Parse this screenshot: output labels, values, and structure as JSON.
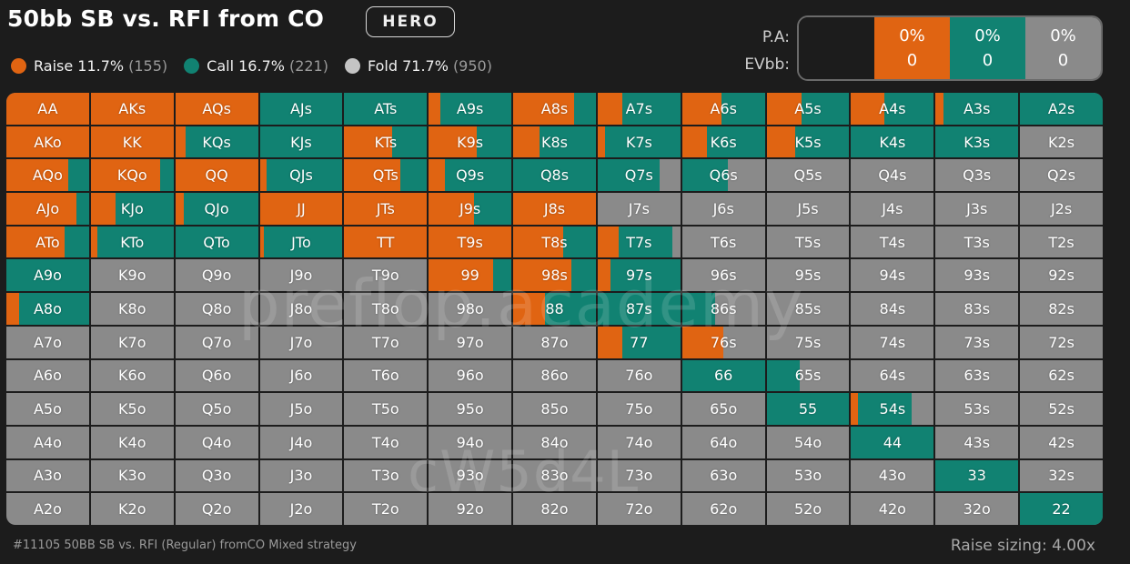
{
  "header": {
    "title": "50bb SB vs. RFI from CO",
    "hero_label": "HERO"
  },
  "legend": [
    {
      "name": "Raise",
      "pct": "11.7%",
      "count": "(155)",
      "color": "#e06412"
    },
    {
      "name": "Call",
      "pct": "16.7%",
      "count": "(221)",
      "color": "#118272"
    },
    {
      "name": "Fold",
      "pct": "71.7%",
      "count": "(950)",
      "color": "#c4c4c4"
    }
  ],
  "pa_panel": {
    "labels": [
      "P.A:",
      "EVbb:"
    ],
    "cells": [
      {
        "pa": "0%",
        "ev": "0",
        "color": "#e06412"
      },
      {
        "pa": "0%",
        "ev": "0",
        "color": "#118272"
      },
      {
        "pa": "0%",
        "ev": "0",
        "color": "#8a8a8a"
      }
    ]
  },
  "colors": {
    "raise": "#e06412",
    "call": "#118272",
    "fold": "#8a8a8a",
    "background": "#1c1c1c"
  },
  "grid": [
    [
      {
        "label": "AA",
        "raise": 100,
        "call": 0
      },
      {
        "label": "AKs",
        "raise": 100,
        "call": 0
      },
      {
        "label": "AQs",
        "raise": 100,
        "call": 0
      },
      {
        "label": "AJs",
        "raise": 0,
        "call": 100
      },
      {
        "label": "ATs",
        "raise": 0,
        "call": 100
      },
      {
        "label": "A9s",
        "raise": 14,
        "call": 86
      },
      {
        "label": "A8s",
        "raise": 74,
        "call": 26
      },
      {
        "label": "A7s",
        "raise": 30,
        "call": 70
      },
      {
        "label": "A6s",
        "raise": 48,
        "call": 52
      },
      {
        "label": "A5s",
        "raise": 42,
        "call": 58
      },
      {
        "label": "A4s",
        "raise": 40,
        "call": 60
      },
      {
        "label": "A3s",
        "raise": 10,
        "call": 90
      },
      {
        "label": "A2s",
        "raise": 0,
        "call": 100
      }
    ],
    [
      {
        "label": "AKo",
        "raise": 100,
        "call": 0
      },
      {
        "label": "KK",
        "raise": 100,
        "call": 0
      },
      {
        "label": "KQs",
        "raise": 12,
        "call": 88
      },
      {
        "label": "KJs",
        "raise": 0,
        "call": 100
      },
      {
        "label": "KTs",
        "raise": 58,
        "call": 42
      },
      {
        "label": "K9s",
        "raise": 58,
        "call": 42
      },
      {
        "label": "K8s",
        "raise": 32,
        "call": 68
      },
      {
        "label": "K7s",
        "raise": 9,
        "call": 91
      },
      {
        "label": "K6s",
        "raise": 30,
        "call": 70
      },
      {
        "label": "K5s",
        "raise": 35,
        "call": 65
      },
      {
        "label": "K4s",
        "raise": 0,
        "call": 100
      },
      {
        "label": "K3s",
        "raise": 0,
        "call": 100
      },
      {
        "label": "K2s",
        "raise": 0,
        "call": 0
      }
    ],
    [
      {
        "label": "AQo",
        "raise": 75,
        "call": 25
      },
      {
        "label": "KQo",
        "raise": 84,
        "call": 16
      },
      {
        "label": "QQ",
        "raise": 100,
        "call": 0
      },
      {
        "label": "QJs",
        "raise": 8,
        "call": 92
      },
      {
        "label": "QTs",
        "raise": 68,
        "call": 32
      },
      {
        "label": "Q9s",
        "raise": 20,
        "call": 80
      },
      {
        "label": "Q8s",
        "raise": 0,
        "call": 100
      },
      {
        "label": "Q7s",
        "raise": 0,
        "call": 75
      },
      {
        "label": "Q6s",
        "raise": 0,
        "call": 55
      },
      {
        "label": "Q5s",
        "raise": 0,
        "call": 0
      },
      {
        "label": "Q4s",
        "raise": 0,
        "call": 0
      },
      {
        "label": "Q3s",
        "raise": 0,
        "call": 0
      },
      {
        "label": "Q2s",
        "raise": 0,
        "call": 0
      }
    ],
    [
      {
        "label": "AJo",
        "raise": 85,
        "call": 15
      },
      {
        "label": "KJo",
        "raise": 30,
        "call": 70
      },
      {
        "label": "QJo",
        "raise": 10,
        "call": 90
      },
      {
        "label": "JJ",
        "raise": 100,
        "call": 0
      },
      {
        "label": "JTs",
        "raise": 100,
        "call": 0
      },
      {
        "label": "J9s",
        "raise": 55,
        "call": 45
      },
      {
        "label": "J8s",
        "raise": 100,
        "call": 0
      },
      {
        "label": "J7s",
        "raise": 0,
        "call": 0
      },
      {
        "label": "J6s",
        "raise": 0,
        "call": 0
      },
      {
        "label": "J5s",
        "raise": 0,
        "call": 0
      },
      {
        "label": "J4s",
        "raise": 0,
        "call": 0
      },
      {
        "label": "J3s",
        "raise": 0,
        "call": 0
      },
      {
        "label": "J2s",
        "raise": 0,
        "call": 0
      }
    ],
    [
      {
        "label": "ATo",
        "raise": 70,
        "call": 30
      },
      {
        "label": "KTo",
        "raise": 8,
        "call": 92
      },
      {
        "label": "QTo",
        "raise": 0,
        "call": 100
      },
      {
        "label": "JTo",
        "raise": 5,
        "call": 95
      },
      {
        "label": "TT",
        "raise": 100,
        "call": 0
      },
      {
        "label": "T9s",
        "raise": 100,
        "call": 0
      },
      {
        "label": "T8s",
        "raise": 60,
        "call": 40
      },
      {
        "label": "T7s",
        "raise": 25,
        "call": 65
      },
      {
        "label": "T6s",
        "raise": 0,
        "call": 0
      },
      {
        "label": "T5s",
        "raise": 0,
        "call": 0
      },
      {
        "label": "T4s",
        "raise": 0,
        "call": 0
      },
      {
        "label": "T3s",
        "raise": 0,
        "call": 0
      },
      {
        "label": "T2s",
        "raise": 0,
        "call": 0
      }
    ],
    [
      {
        "label": "A9o",
        "raise": 0,
        "call": 100
      },
      {
        "label": "K9o",
        "raise": 0,
        "call": 0
      },
      {
        "label": "Q9o",
        "raise": 0,
        "call": 0
      },
      {
        "label": "J9o",
        "raise": 0,
        "call": 0
      },
      {
        "label": "T9o",
        "raise": 0,
        "call": 0
      },
      {
        "label": "99",
        "raise": 78,
        "call": 22
      },
      {
        "label": "98s",
        "raise": 70,
        "call": 30
      },
      {
        "label": "97s",
        "raise": 15,
        "call": 85
      },
      {
        "label": "96s",
        "raise": 0,
        "call": 0
      },
      {
        "label": "95s",
        "raise": 0,
        "call": 0
      },
      {
        "label": "94s",
        "raise": 0,
        "call": 0
      },
      {
        "label": "93s",
        "raise": 0,
        "call": 0
      },
      {
        "label": "92s",
        "raise": 0,
        "call": 0
      }
    ],
    [
      {
        "label": "A8o",
        "raise": 15,
        "call": 85
      },
      {
        "label": "K8o",
        "raise": 0,
        "call": 0
      },
      {
        "label": "Q8o",
        "raise": 0,
        "call": 0
      },
      {
        "label": "J8o",
        "raise": 0,
        "call": 0
      },
      {
        "label": "T8o",
        "raise": 0,
        "call": 0
      },
      {
        "label": "98o",
        "raise": 0,
        "call": 0
      },
      {
        "label": "88",
        "raise": 38,
        "call": 62
      },
      {
        "label": "87s",
        "raise": 0,
        "call": 100
      },
      {
        "label": "86s",
        "raise": 0,
        "call": 40
      },
      {
        "label": "85s",
        "raise": 0,
        "call": 0
      },
      {
        "label": "84s",
        "raise": 0,
        "call": 0
      },
      {
        "label": "83s",
        "raise": 0,
        "call": 0
      },
      {
        "label": "82s",
        "raise": 0,
        "call": 0
      }
    ],
    [
      {
        "label": "A7o",
        "raise": 0,
        "call": 0
      },
      {
        "label": "K7o",
        "raise": 0,
        "call": 0
      },
      {
        "label": "Q7o",
        "raise": 0,
        "call": 0
      },
      {
        "label": "J7o",
        "raise": 0,
        "call": 0
      },
      {
        "label": "T7o",
        "raise": 0,
        "call": 0
      },
      {
        "label": "97o",
        "raise": 0,
        "call": 0
      },
      {
        "label": "87o",
        "raise": 0,
        "call": 0
      },
      {
        "label": "77",
        "raise": 30,
        "call": 70
      },
      {
        "label": "76s",
        "raise": 50,
        "call": 0
      },
      {
        "label": "75s",
        "raise": 0,
        "call": 0
      },
      {
        "label": "74s",
        "raise": 0,
        "call": 0
      },
      {
        "label": "73s",
        "raise": 0,
        "call": 0
      },
      {
        "label": "72s",
        "raise": 0,
        "call": 0
      }
    ],
    [
      {
        "label": "A6o",
        "raise": 0,
        "call": 0
      },
      {
        "label": "K6o",
        "raise": 0,
        "call": 0
      },
      {
        "label": "Q6o",
        "raise": 0,
        "call": 0
      },
      {
        "label": "J6o",
        "raise": 0,
        "call": 0
      },
      {
        "label": "T6o",
        "raise": 0,
        "call": 0
      },
      {
        "label": "96o",
        "raise": 0,
        "call": 0
      },
      {
        "label": "86o",
        "raise": 0,
        "call": 0
      },
      {
        "label": "76o",
        "raise": 0,
        "call": 0
      },
      {
        "label": "66",
        "raise": 0,
        "call": 100
      },
      {
        "label": "65s",
        "raise": 0,
        "call": 40
      },
      {
        "label": "64s",
        "raise": 0,
        "call": 0
      },
      {
        "label": "63s",
        "raise": 0,
        "call": 0
      },
      {
        "label": "62s",
        "raise": 0,
        "call": 0
      }
    ],
    [
      {
        "label": "A5o",
        "raise": 0,
        "call": 0
      },
      {
        "label": "K5o",
        "raise": 0,
        "call": 0
      },
      {
        "label": "Q5o",
        "raise": 0,
        "call": 0
      },
      {
        "label": "J5o",
        "raise": 0,
        "call": 0
      },
      {
        "label": "T5o",
        "raise": 0,
        "call": 0
      },
      {
        "label": "95o",
        "raise": 0,
        "call": 0
      },
      {
        "label": "85o",
        "raise": 0,
        "call": 0
      },
      {
        "label": "75o",
        "raise": 0,
        "call": 0
      },
      {
        "label": "65o",
        "raise": 0,
        "call": 0
      },
      {
        "label": "55",
        "raise": 0,
        "call": 100
      },
      {
        "label": "54s",
        "raise": 8,
        "call": 65
      },
      {
        "label": "53s",
        "raise": 0,
        "call": 0
      },
      {
        "label": "52s",
        "raise": 0,
        "call": 0
      }
    ],
    [
      {
        "label": "A4o",
        "raise": 0,
        "call": 0
      },
      {
        "label": "K4o",
        "raise": 0,
        "call": 0
      },
      {
        "label": "Q4o",
        "raise": 0,
        "call": 0
      },
      {
        "label": "J4o",
        "raise": 0,
        "call": 0
      },
      {
        "label": "T4o",
        "raise": 0,
        "call": 0
      },
      {
        "label": "94o",
        "raise": 0,
        "call": 0
      },
      {
        "label": "84o",
        "raise": 0,
        "call": 0
      },
      {
        "label": "74o",
        "raise": 0,
        "call": 0
      },
      {
        "label": "64o",
        "raise": 0,
        "call": 0
      },
      {
        "label": "54o",
        "raise": 0,
        "call": 0
      },
      {
        "label": "44",
        "raise": 0,
        "call": 100
      },
      {
        "label": "43s",
        "raise": 0,
        "call": 0
      },
      {
        "label": "42s",
        "raise": 0,
        "call": 0
      }
    ],
    [
      {
        "label": "A3o",
        "raise": 0,
        "call": 0
      },
      {
        "label": "K3o",
        "raise": 0,
        "call": 0
      },
      {
        "label": "Q3o",
        "raise": 0,
        "call": 0
      },
      {
        "label": "J3o",
        "raise": 0,
        "call": 0
      },
      {
        "label": "T3o",
        "raise": 0,
        "call": 0
      },
      {
        "label": "93o",
        "raise": 0,
        "call": 0
      },
      {
        "label": "83o",
        "raise": 0,
        "call": 0
      },
      {
        "label": "73o",
        "raise": 0,
        "call": 0
      },
      {
        "label": "63o",
        "raise": 0,
        "call": 0
      },
      {
        "label": "53o",
        "raise": 0,
        "call": 0
      },
      {
        "label": "43o",
        "raise": 0,
        "call": 0
      },
      {
        "label": "33",
        "raise": 0,
        "call": 100
      },
      {
        "label": "32s",
        "raise": 0,
        "call": 0
      }
    ],
    [
      {
        "label": "A2o",
        "raise": 0,
        "call": 0
      },
      {
        "label": "K2o",
        "raise": 0,
        "call": 0
      },
      {
        "label": "Q2o",
        "raise": 0,
        "call": 0
      },
      {
        "label": "J2o",
        "raise": 0,
        "call": 0
      },
      {
        "label": "T2o",
        "raise": 0,
        "call": 0
      },
      {
        "label": "92o",
        "raise": 0,
        "call": 0
      },
      {
        "label": "82o",
        "raise": 0,
        "call": 0
      },
      {
        "label": "72o",
        "raise": 0,
        "call": 0
      },
      {
        "label": "62o",
        "raise": 0,
        "call": 0
      },
      {
        "label": "52o",
        "raise": 0,
        "call": 0
      },
      {
        "label": "42o",
        "raise": 0,
        "call": 0
      },
      {
        "label": "32o",
        "raise": 0,
        "call": 0
      },
      {
        "label": "22",
        "raise": 0,
        "call": 100
      }
    ]
  ],
  "watermarks": [
    "preflop.academy",
    "cW5d4L"
  ],
  "footer": {
    "left": "#11105 50BB SB vs. RFI (Regular) fromCO Mixed strategy",
    "right": "Raise sizing: 4.00x"
  }
}
